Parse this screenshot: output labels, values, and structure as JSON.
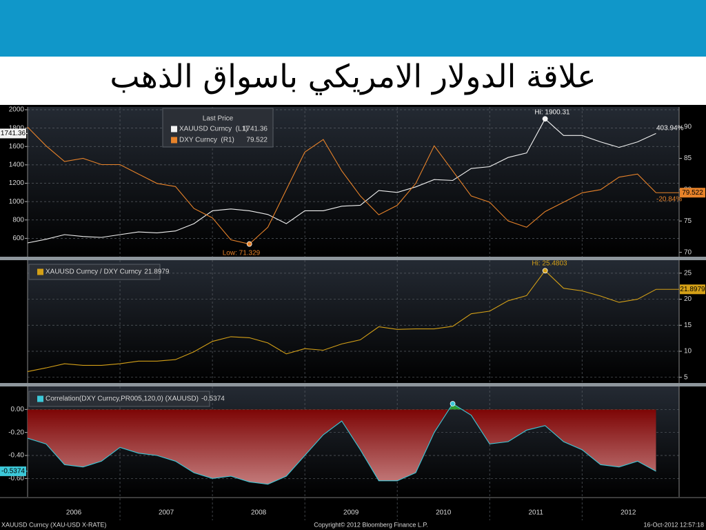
{
  "title": "علاقة الدولار الامريكي باسواق الذهب",
  "chart_data": [
    {
      "type": "line",
      "legend_title": "Last Price",
      "x": [
        2006,
        2006.2,
        2006.4,
        2006.6,
        2006.8,
        2007,
        2007.2,
        2007.4,
        2007.6,
        2007.8,
        2008,
        2008.2,
        2008.4,
        2008.6,
        2008.8,
        2009,
        2009.2,
        2009.4,
        2009.6,
        2009.8,
        2010,
        2010.2,
        2010.4,
        2010.6,
        2010.8,
        2011,
        2011.2,
        2011.4,
        2011.6,
        2011.8,
        2012,
        2012.2,
        2012.4,
        2012.6,
        2012.8
      ],
      "xlim": [
        2006,
        2013.05
      ],
      "ylim": [
        400,
        2030
      ],
      "yticks": [
        600,
        800,
        1000,
        1200,
        1400,
        1600,
        1800,
        2000
      ],
      "y2lim": [
        69.3,
        93.2
      ],
      "y2ticks": [
        70,
        75,
        80,
        85,
        90
      ],
      "grid": true,
      "yaxis_side": "left",
      "series": [
        {
          "name": "XAUUSD Curncy  (L1)",
          "color": "#f2f2f2",
          "values": [
            550,
            590,
            640,
            620,
            610,
            640,
            670,
            660,
            680,
            760,
            900,
            920,
            900,
            860,
            760,
            900,
            900,
            950,
            960,
            1120,
            1100,
            1160,
            1240,
            1230,
            1360,
            1380,
            1480,
            1530,
            1900.31,
            1720,
            1720,
            1650,
            1590,
            1650,
            1741.36
          ]
        },
        {
          "name": "DXY Curncy  (R1)",
          "color": "#e8832a",
          "axis": "y2",
          "values": [
            90,
            87,
            84.5,
            85,
            84,
            84,
            82.5,
            81,
            80.5,
            77,
            75.5,
            72,
            71.329,
            74,
            80,
            86,
            88,
            83,
            79,
            76,
            77.5,
            81,
            87,
            83,
            79,
            78,
            75,
            74,
            76.5,
            78,
            79.5,
            80,
            82,
            82.5,
            79.522
          ]
        }
      ],
      "annotations": [
        "Hi: 1900.31",
        "Low: 71.329",
        "403.94%",
        "-20.84%"
      ]
    },
    {
      "type": "area",
      "x": [
        2006,
        2006.2,
        2006.4,
        2006.6,
        2006.8,
        2007,
        2007.2,
        2007.4,
        2007.6,
        2007.8,
        2008,
        2008.2,
        2008.4,
        2008.6,
        2008.8,
        2009,
        2009.2,
        2009.4,
        2009.6,
        2009.8,
        2010,
        2010.2,
        2010.4,
        2010.6,
        2010.8,
        2011,
        2011.2,
        2011.4,
        2011.6,
        2011.8,
        2012,
        2012.2,
        2012.4,
        2012.6,
        2012.8
      ],
      "xlim": [
        2006,
        2013.05
      ],
      "ylim": [
        3.9,
        27.5
      ],
      "yticks": [
        5,
        10,
        15,
        20,
        25
      ],
      "grid": true,
      "yaxis_side": "right",
      "fill_gradient": [
        "#4b8f22",
        "#2a5510"
      ],
      "series": [
        {
          "name": "XAUUSD Curncy / DXY Curncy",
          "color": "#d4a017",
          "values": [
            6.1,
            6.8,
            7.6,
            7.3,
            7.3,
            7.6,
            8.1,
            8.1,
            8.4,
            9.9,
            11.9,
            12.8,
            12.6,
            11.6,
            9.5,
            10.5,
            10.2,
            11.4,
            12.2,
            14.7,
            14.2,
            14.3,
            14.3,
            14.8,
            17.2,
            17.7,
            19.7,
            20.7,
            25.4803,
            22.1,
            21.6,
            20.6,
            19.4,
            20,
            21.8979
          ]
        }
      ],
      "annotations": [
        "Hi: 25.4803"
      ]
    },
    {
      "type": "area",
      "x": [
        2006,
        2006.2,
        2006.4,
        2006.6,
        2006.8,
        2007,
        2007.2,
        2007.4,
        2007.6,
        2007.8,
        2008,
        2008.2,
        2008.4,
        2008.6,
        2008.8,
        2009,
        2009.2,
        2009.4,
        2009.6,
        2009.8,
        2010,
        2010.2,
        2010.4,
        2010.6,
        2010.8,
        2011,
        2011.2,
        2011.4,
        2011.6,
        2011.8,
        2012,
        2012.2,
        2012.4,
        2012.6,
        2012.8
      ],
      "xlim": [
        2006,
        2013.05
      ],
      "ylim": [
        -0.76,
        0.2
      ],
      "yticks": [
        {
          "value": 0,
          "label": "0.00"
        },
        {
          "value": -0.2,
          "label": "-0.20"
        },
        {
          "value": -0.4,
          "label": "-0.40"
        },
        {
          "value": -0.6,
          "label": "-0.60"
        }
      ],
      "grid": true,
      "yaxis_side": "left",
      "fill_gradient": [
        "#7d0505",
        "#cf8f8f"
      ],
      "fill_positive": "#2f9a2f",
      "xticks": [
        {
          "value": 2006.5,
          "label": "2006"
        },
        {
          "value": 2007.5,
          "label": "2007"
        },
        {
          "value": 2008.5,
          "label": "2008"
        },
        {
          "value": 2009.5,
          "label": "2009"
        },
        {
          "value": 2010.5,
          "label": "2010"
        },
        {
          "value": 2011.5,
          "label": "2011"
        },
        {
          "value": 2012.5,
          "label": "2012"
        }
      ],
      "xgrid": [
        2007,
        2008,
        2009,
        2010,
        2011,
        2012
      ],
      "series": [
        {
          "name": "Correlation(DXY Curncy,PR005,120,0) (XAUUSD)",
          "color": "#3cc8d8",
          "values": [
            -0.25,
            -0.3,
            -0.48,
            -0.5,
            -0.45,
            -0.33,
            -0.38,
            -0.4,
            -0.45,
            -0.55,
            -0.6,
            -0.58,
            -0.63,
            -0.65,
            -0.58,
            -0.4,
            -0.22,
            -0.1,
            -0.35,
            -0.62,
            -0.62,
            -0.55,
            -0.2,
            0.05,
            -0.05,
            -0.3,
            -0.28,
            -0.18,
            -0.14,
            -0.28,
            -0.35,
            -0.48,
            -0.5,
            -0.45,
            -0.5374
          ]
        }
      ]
    }
  ],
  "footer": {
    "left": "XAUUSD Curncy (XAU-USD X-RATE)",
    "center": "Copyright© 2012 Bloomberg Finance L.P.",
    "right": "16-Oct-2012 12:57:18"
  }
}
